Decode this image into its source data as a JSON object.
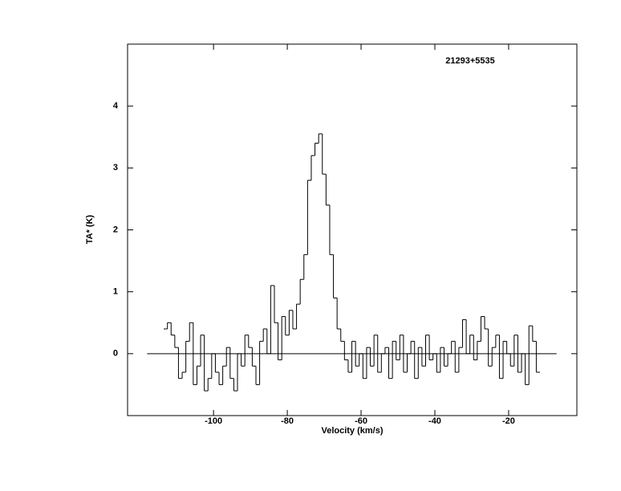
{
  "chart_data": {
    "type": "step",
    "title": "21293+5535",
    "x_label": "Velocity (km/s)",
    "y_label": "TA* (K)",
    "xlim": [
      -123.3,
      -1.5
    ],
    "ylim": [
      -1,
      5
    ],
    "xticks": [
      -100,
      -80,
      -60,
      -40,
      -20
    ],
    "yticks": [
      0,
      1,
      2,
      3,
      4
    ],
    "baseline_x": [
      -118,
      -7
    ],
    "color": "#000000",
    "x": [
      -113,
      -112,
      -111,
      -110,
      -109,
      -108,
      -107,
      -106,
      -105,
      -104,
      -103,
      -102,
      -101,
      -100,
      -99,
      -98,
      -97,
      -96,
      -95,
      -94,
      -93,
      -92,
      -91,
      -90,
      -89,
      -88,
      -87,
      -86,
      -85,
      -84,
      -83,
      -82,
      -81,
      -80,
      -79,
      -78,
      -77,
      -76,
      -75,
      -74,
      -73,
      -72,
      -71,
      -70,
      -69,
      -68,
      -67,
      -66,
      -65,
      -64,
      -63,
      -62,
      -61,
      -60,
      -59,
      -58,
      -57,
      -56,
      -55,
      -54,
      -53,
      -52,
      -51,
      -50,
      -49,
      -48,
      -47,
      -46,
      -45,
      -44,
      -43,
      -42,
      -41,
      -40,
      -39,
      -38,
      -37,
      -36,
      -35,
      -34,
      -33,
      -32,
      -31,
      -30,
      -29,
      -28,
      -27,
      -26,
      -25,
      -24,
      -23,
      -22,
      -21,
      -20,
      -19,
      -18,
      -17,
      -16,
      -15,
      -14,
      -13,
      -12
    ],
    "values": [
      0.4,
      0.5,
      0.3,
      0.1,
      -0.4,
      -0.3,
      0.2,
      0.5,
      -0.5,
      -0.2,
      0.3,
      -0.6,
      -0.4,
      0.0,
      -0.3,
      -0.5,
      -0.2,
      0.1,
      -0.4,
      -0.6,
      0.0,
      -0.2,
      0.3,
      0.1,
      -0.2,
      -0.5,
      0.2,
      0.4,
      0.0,
      1.1,
      0.5,
      -0.1,
      0.6,
      0.3,
      0.7,
      0.4,
      0.8,
      1.2,
      1.6,
      2.8,
      3.2,
      3.4,
      3.55,
      2.9,
      2.4,
      1.6,
      0.9,
      0.4,
      0.2,
      -0.1,
      -0.3,
      0.2,
      -0.2,
      0.0,
      -0.4,
      0.1,
      -0.2,
      0.3,
      -0.3,
      0.0,
      0.1,
      -0.4,
      0.2,
      -0.1,
      0.3,
      -0.3,
      0.0,
      0.2,
      -0.4,
      0.1,
      -0.2,
      0.3,
      -0.1,
      0.0,
      -0.3,
      0.1,
      -0.2,
      0.0,
      0.2,
      -0.3,
      0.1,
      0.55,
      0.0,
      0.3,
      -0.1,
      0.2,
      0.6,
      0.4,
      -0.2,
      0.1,
      0.3,
      -0.4,
      0.2,
      0.0,
      -0.2,
      0.3,
      -0.3,
      0.0,
      -0.5,
      0.45,
      0.2,
      -0.3
    ]
  }
}
